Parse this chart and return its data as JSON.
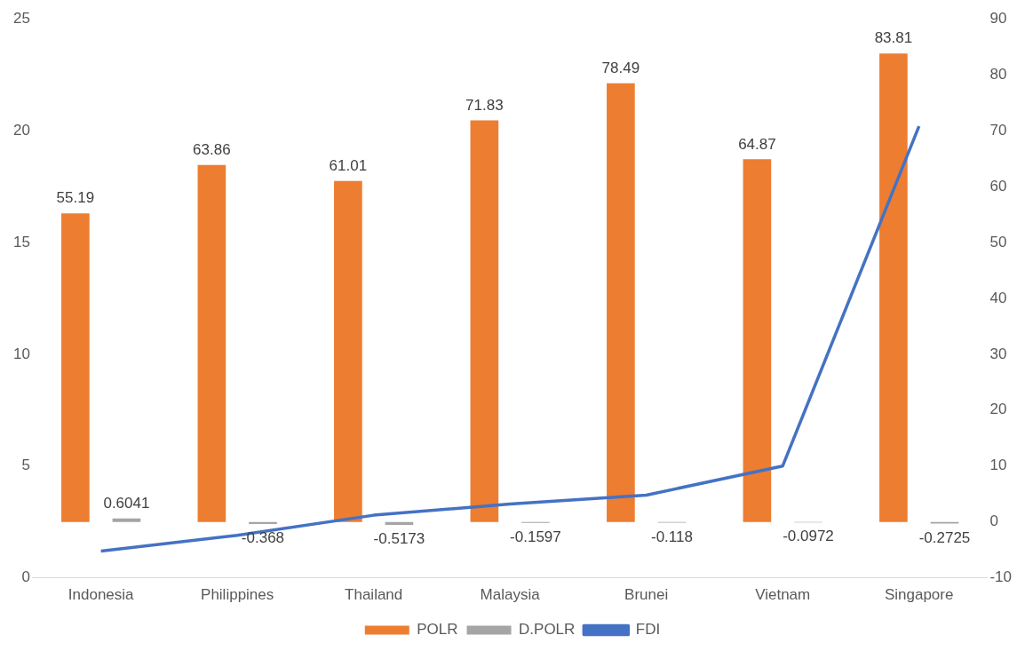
{
  "chart_data": {
    "type": "bar",
    "categories": [
      "Indonesia",
      "Philippines",
      "Thailand",
      "Malaysia",
      "Brunei",
      "Vietnam",
      "Singapore"
    ],
    "series": [
      {
        "name": "POLR",
        "axis": "y2",
        "color": "#ed7d31",
        "values": [
          55.19,
          63.86,
          61.01,
          71.83,
          78.49,
          64.87,
          83.81
        ],
        "value_labels": [
          "55.19",
          "63.86",
          "61.01",
          "71.83",
          "78.49",
          "64.87",
          "83.81"
        ]
      },
      {
        "name": "D.POLR",
        "axis": "y2",
        "color": "#a5a5a5",
        "values": [
          0.6041,
          -0.368,
          -0.5173,
          -0.1597,
          -0.118,
          -0.0972,
          -0.2725
        ],
        "value_labels": [
          "0.6041",
          "-0.368",
          "-0.5173",
          "-0.1597",
          "-0.118",
          "-0.0972",
          "-0.2725"
        ]
      },
      {
        "name": "FDI",
        "type": "line",
        "color": "#4472c4",
        "values": [
          1.2,
          1.9,
          2.8,
          3.3,
          3.7,
          5.0,
          20.2
        ]
      }
    ],
    "ylim": [
      0,
      25
    ],
    "yticks": [
      0,
      5,
      10,
      15,
      20,
      25
    ],
    "y2lim": [
      -10,
      90
    ],
    "y2ticks": [
      -10,
      0,
      10,
      20,
      30,
      40,
      50,
      60,
      70,
      80,
      90
    ],
    "grid": false,
    "legend": "bottom",
    "marker": "none"
  }
}
